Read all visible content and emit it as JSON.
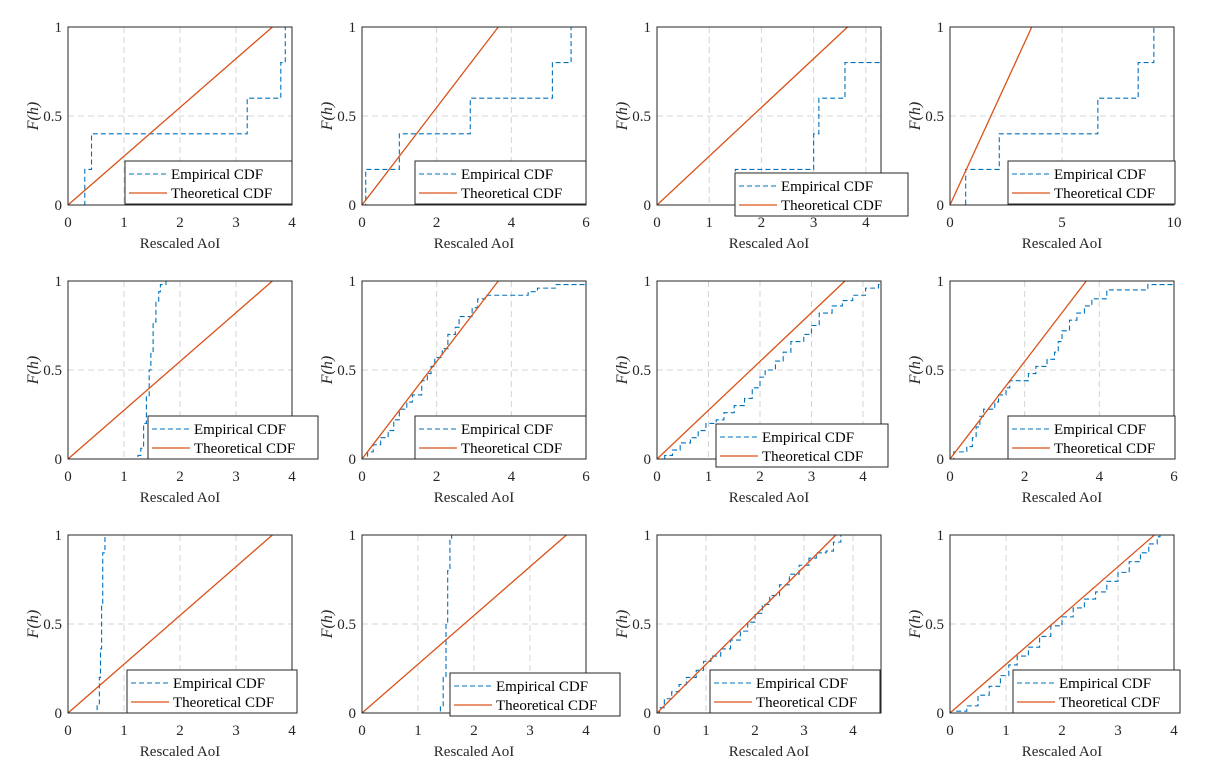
{
  "colors": {
    "empirical": "#0072BD",
    "theoretical": "#D95319",
    "grid": "#d4d4d4",
    "axis": "#262626"
  },
  "chart_data": [
    {
      "type": "line",
      "xlabel": "Rescaled AoI",
      "ylabel": "F(h)",
      "xlim": [
        0,
        4
      ],
      "ylim": [
        0,
        1
      ],
      "xticks": [
        0,
        1,
        2,
        3,
        4
      ],
      "yticks": [
        0,
        0.5,
        1
      ],
      "grid": true,
      "legend": "bottom-right",
      "series": [
        {
          "name": "Empirical CDF",
          "style": "dashed-step",
          "points": [
            [
              0.3,
              0.2
            ],
            [
              0.42,
              0.4
            ],
            [
              3.2,
              0.6
            ],
            [
              3.8,
              0.8
            ],
            [
              3.88,
              1.0
            ]
          ]
        },
        {
          "name": "Theoretical CDF",
          "style": "solid",
          "points": [
            [
              0,
              0
            ],
            [
              3.65,
              1
            ]
          ]
        }
      ]
    },
    {
      "type": "line",
      "xlabel": "Rescaled AoI",
      "ylabel": "F(h)",
      "xlim": [
        0,
        6
      ],
      "ylim": [
        0,
        1
      ],
      "xticks": [
        0,
        2,
        4,
        6
      ],
      "yticks": [
        0,
        0.5,
        1
      ],
      "grid": true,
      "legend": "bottom-right",
      "series": [
        {
          "name": "Empirical CDF",
          "style": "dashed-step",
          "points": [
            [
              0.1,
              0.2
            ],
            [
              1.0,
              0.4
            ],
            [
              2.9,
              0.6
            ],
            [
              5.1,
              0.8
            ],
            [
              5.6,
              1.0
            ]
          ]
        },
        {
          "name": "Theoretical CDF",
          "style": "solid",
          "points": [
            [
              0,
              0
            ],
            [
              3.65,
              1
            ]
          ]
        }
      ]
    },
    {
      "type": "line",
      "xlabel": "Rescaled AoI",
      "ylabel": "F(h)",
      "xlim": [
        0,
        4.29
      ],
      "ylim": [
        0,
        1
      ],
      "xticks": [
        0,
        1,
        2,
        3,
        4
      ],
      "yticks": [
        0,
        0.5,
        1
      ],
      "grid": true,
      "legend": "bottom-right",
      "series": [
        {
          "name": "Empirical CDF",
          "style": "dashed-step",
          "points": [
            [
              1.5,
              0.2
            ],
            [
              3.0,
              0.4
            ],
            [
              3.1,
              0.6
            ],
            [
              3.6,
              0.8
            ],
            [
              4.29,
              1.0
            ]
          ]
        },
        {
          "name": "Theoretical CDF",
          "style": "solid",
          "points": [
            [
              0,
              0
            ],
            [
              3.65,
              1
            ]
          ]
        }
      ]
    },
    {
      "type": "line",
      "xlabel": "Rescaled AoI",
      "ylabel": "F(h)",
      "xlim": [
        0,
        10
      ],
      "ylim": [
        0,
        1
      ],
      "xticks": [
        0,
        5,
        10
      ],
      "yticks": [
        0,
        0.5,
        1
      ],
      "grid": true,
      "legend": "bottom-right",
      "series": [
        {
          "name": "Empirical CDF",
          "style": "dashed-step",
          "points": [
            [
              0.7,
              0.2
            ],
            [
              2.2,
              0.4
            ],
            [
              6.6,
              0.6
            ],
            [
              8.4,
              0.8
            ],
            [
              9.1,
              1.0
            ]
          ]
        },
        {
          "name": "Theoretical CDF",
          "style": "solid",
          "points": [
            [
              0,
              0
            ],
            [
              3.65,
              1
            ]
          ]
        }
      ]
    },
    {
      "type": "line",
      "xlabel": "Rescaled AoI",
      "ylabel": "F(h)",
      "xlim": [
        0,
        4
      ],
      "ylim": [
        0,
        1
      ],
      "xticks": [
        0,
        1,
        2,
        3,
        4
      ],
      "yticks": [
        0,
        0.5,
        1
      ],
      "grid": true,
      "legend": "bottom-right",
      "series": [
        {
          "name": "Empirical CDF",
          "style": "dashed-step",
          "points": [
            [
              1.25,
              0.02
            ],
            [
              1.3,
              0.06
            ],
            [
              1.35,
              0.2
            ],
            [
              1.4,
              0.35
            ],
            [
              1.45,
              0.5
            ],
            [
              1.48,
              0.6
            ],
            [
              1.52,
              0.77
            ],
            [
              1.57,
              0.88
            ],
            [
              1.62,
              0.94
            ],
            [
              1.65,
              0.98
            ],
            [
              1.75,
              1.0
            ]
          ]
        },
        {
          "name": "Theoretical CDF",
          "style": "solid",
          "points": [
            [
              0,
              0
            ],
            [
              3.65,
              1
            ]
          ]
        }
      ]
    },
    {
      "type": "line",
      "xlabel": "Rescaled AoI",
      "ylabel": "F(h)",
      "xlim": [
        0,
        6
      ],
      "ylim": [
        0,
        1
      ],
      "xticks": [
        0,
        2,
        4,
        6
      ],
      "yticks": [
        0,
        0.5,
        1
      ],
      "grid": true,
      "legend": "bottom-right",
      "series": [
        {
          "name": "Empirical CDF",
          "style": "dashed-step",
          "points": [
            [
              0.15,
              0.04
            ],
            [
              0.3,
              0.08
            ],
            [
              0.5,
              0.12
            ],
            [
              0.7,
              0.16
            ],
            [
              0.85,
              0.22
            ],
            [
              1.0,
              0.28
            ],
            [
              1.2,
              0.32
            ],
            [
              1.35,
              0.36
            ],
            [
              1.6,
              0.44
            ],
            [
              1.75,
              0.48
            ],
            [
              1.85,
              0.52
            ],
            [
              1.95,
              0.57
            ],
            [
              2.15,
              0.62
            ],
            [
              2.3,
              0.7
            ],
            [
              2.5,
              0.74
            ],
            [
              2.6,
              0.8
            ],
            [
              2.95,
              0.85
            ],
            [
              3.1,
              0.9
            ],
            [
              3.3,
              0.92
            ],
            [
              4.45,
              0.94
            ],
            [
              4.7,
              0.96
            ],
            [
              5.2,
              0.98
            ]
          ]
        },
        {
          "name": "Theoretical CDF",
          "style": "solid",
          "points": [
            [
              0,
              0
            ],
            [
              3.65,
              1
            ]
          ]
        }
      ]
    },
    {
      "type": "line",
      "xlabel": "Rescaled AoI",
      "ylabel": "F(h)",
      "xlim": [
        0,
        4.35
      ],
      "ylim": [
        0,
        1
      ],
      "xticks": [
        0,
        1,
        2,
        3,
        4
      ],
      "yticks": [
        0,
        0.5,
        1
      ],
      "grid": true,
      "legend": "bottom-right",
      "series": [
        {
          "name": "Empirical CDF",
          "style": "dashed-step",
          "points": [
            [
              0.15,
              0.02
            ],
            [
              0.3,
              0.05
            ],
            [
              0.45,
              0.09
            ],
            [
              0.65,
              0.12
            ],
            [
              0.8,
              0.16
            ],
            [
              0.95,
              0.2
            ],
            [
              1.15,
              0.22
            ],
            [
              1.3,
              0.26
            ],
            [
              1.5,
              0.3
            ],
            [
              1.7,
              0.34
            ],
            [
              1.85,
              0.4
            ],
            [
              2.0,
              0.46
            ],
            [
              2.1,
              0.5
            ],
            [
              2.3,
              0.55
            ],
            [
              2.45,
              0.6
            ],
            [
              2.6,
              0.66
            ],
            [
              2.85,
              0.7
            ],
            [
              3.0,
              0.75
            ],
            [
              3.15,
              0.82
            ],
            [
              3.4,
              0.86
            ],
            [
              3.6,
              0.89
            ],
            [
              3.8,
              0.92
            ],
            [
              4.05,
              0.96
            ],
            [
              4.3,
              0.98
            ]
          ]
        },
        {
          "name": "Theoretical CDF",
          "style": "solid",
          "points": [
            [
              0,
              0
            ],
            [
              3.65,
              1
            ]
          ]
        }
      ]
    },
    {
      "type": "line",
      "xlabel": "Rescaled AoI",
      "ylabel": "F(h)",
      "xlim": [
        0,
        6
      ],
      "ylim": [
        0,
        1
      ],
      "xticks": [
        0,
        2,
        4,
        6
      ],
      "yticks": [
        0,
        0.5,
        1
      ],
      "grid": true,
      "legend": "bottom-right",
      "series": [
        {
          "name": "Empirical CDF",
          "style": "dashed-step",
          "points": [
            [
              0.1,
              0.04
            ],
            [
              0.45,
              0.07
            ],
            [
              0.6,
              0.12
            ],
            [
              0.7,
              0.18
            ],
            [
              0.8,
              0.24
            ],
            [
              0.9,
              0.28
            ],
            [
              1.2,
              0.32
            ],
            [
              1.3,
              0.36
            ],
            [
              1.5,
              0.4
            ],
            [
              1.6,
              0.44
            ],
            [
              2.1,
              0.48
            ],
            [
              2.3,
              0.52
            ],
            [
              2.6,
              0.56
            ],
            [
              2.8,
              0.6
            ],
            [
              2.9,
              0.66
            ],
            [
              3.0,
              0.72
            ],
            [
              3.2,
              0.78
            ],
            [
              3.4,
              0.82
            ],
            [
              3.6,
              0.86
            ],
            [
              3.8,
              0.9
            ],
            [
              4.2,
              0.95
            ],
            [
              5.3,
              0.98
            ]
          ]
        },
        {
          "name": "Theoretical CDF",
          "style": "solid",
          "points": [
            [
              0,
              0
            ],
            [
              3.65,
              1
            ]
          ]
        }
      ]
    },
    {
      "type": "line",
      "xlabel": "Rescaled AoI",
      "ylabel": "F(h)",
      "xlim": [
        0,
        4
      ],
      "ylim": [
        0,
        1
      ],
      "xticks": [
        0,
        1,
        2,
        3,
        4
      ],
      "yticks": [
        0,
        0.5,
        1
      ],
      "grid": true,
      "legend": "bottom-right",
      "series": [
        {
          "name": "Empirical CDF",
          "style": "dashed-step",
          "points": [
            [
              0.52,
              0.04
            ],
            [
              0.56,
              0.2
            ],
            [
              0.58,
              0.36
            ],
            [
              0.6,
              0.6
            ],
            [
              0.62,
              0.9
            ],
            [
              0.66,
              1.0
            ]
          ]
        },
        {
          "name": "Theoretical CDF",
          "style": "solid",
          "points": [
            [
              0,
              0
            ],
            [
              3.65,
              1
            ]
          ]
        }
      ]
    },
    {
      "type": "line",
      "xlabel": "Rescaled AoI",
      "ylabel": "F(h)",
      "xlim": [
        0,
        4
      ],
      "ylim": [
        0,
        1
      ],
      "xticks": [
        0,
        1,
        2,
        3,
        4
      ],
      "yticks": [
        0,
        0.5,
        1
      ],
      "grid": true,
      "legend": "bottom-right",
      "series": [
        {
          "name": "Empirical CDF",
          "style": "dashed-step",
          "points": [
            [
              1.4,
              0.04
            ],
            [
              1.45,
              0.2
            ],
            [
              1.5,
              0.5
            ],
            [
              1.53,
              0.8
            ],
            [
              1.57,
              0.98
            ],
            [
              1.6,
              1.0
            ]
          ]
        },
        {
          "name": "Theoretical CDF",
          "style": "solid",
          "points": [
            [
              0,
              0
            ],
            [
              3.65,
              1
            ]
          ]
        }
      ]
    },
    {
      "type": "line",
      "xlabel": "Rescaled AoI",
      "ylabel": "F(h)",
      "xlim": [
        0,
        4.57
      ],
      "ylim": [
        0,
        1
      ],
      "xticks": [
        0,
        1,
        2,
        3,
        4
      ],
      "yticks": [
        0,
        0.5,
        1
      ],
      "grid": true,
      "legend": "bottom-right",
      "series": [
        {
          "name": "Empirical CDF",
          "style": "dashed-step",
          "points": [
            [
              0.05,
              0.03
            ],
            [
              0.15,
              0.08
            ],
            [
              0.3,
              0.12
            ],
            [
              0.45,
              0.16
            ],
            [
              0.6,
              0.2
            ],
            [
              0.8,
              0.24
            ],
            [
              0.95,
              0.29
            ],
            [
              1.1,
              0.32
            ],
            [
              1.3,
              0.36
            ],
            [
              1.5,
              0.41
            ],
            [
              1.7,
              0.46
            ],
            [
              1.85,
              0.51
            ],
            [
              2.0,
              0.56
            ],
            [
              2.15,
              0.61
            ],
            [
              2.3,
              0.66
            ],
            [
              2.5,
              0.72
            ],
            [
              2.7,
              0.78
            ],
            [
              2.9,
              0.83
            ],
            [
              3.1,
              0.87
            ],
            [
              3.25,
              0.9
            ],
            [
              3.45,
              0.91
            ],
            [
              3.6,
              0.96
            ],
            [
              3.75,
              1.0
            ]
          ]
        },
        {
          "name": "Theoretical CDF",
          "style": "solid",
          "points": [
            [
              0,
              0
            ],
            [
              3.65,
              1
            ]
          ]
        }
      ]
    },
    {
      "type": "line",
      "xlabel": "Rescaled AoI",
      "ylabel": "F(h)",
      "xlim": [
        0,
        4
      ],
      "ylim": [
        0,
        1
      ],
      "xticks": [
        0,
        1,
        2,
        3,
        4
      ],
      "yticks": [
        0,
        0.5,
        1
      ],
      "grid": true,
      "legend": "bottom-right",
      "series": [
        {
          "name": "Empirical CDF",
          "style": "dashed-step",
          "points": [
            [
              0.1,
              0.01
            ],
            [
              0.3,
              0.04
            ],
            [
              0.5,
              0.1
            ],
            [
              0.7,
              0.15
            ],
            [
              0.9,
              0.21
            ],
            [
              1.05,
              0.27
            ],
            [
              1.2,
              0.32
            ],
            [
              1.4,
              0.37
            ],
            [
              1.6,
              0.43
            ],
            [
              1.8,
              0.49
            ],
            [
              2.0,
              0.54
            ],
            [
              2.2,
              0.59
            ],
            [
              2.4,
              0.64
            ],
            [
              2.6,
              0.68
            ],
            [
              2.8,
              0.74
            ],
            [
              3.0,
              0.79
            ],
            [
              3.2,
              0.85
            ],
            [
              3.4,
              0.9
            ],
            [
              3.55,
              0.95
            ],
            [
              3.7,
              0.99
            ],
            [
              3.75,
              1.0
            ]
          ]
        },
        {
          "name": "Theoretical CDF",
          "style": "solid",
          "points": [
            [
              0,
              0
            ],
            [
              3.65,
              1
            ]
          ]
        }
      ]
    }
  ]
}
